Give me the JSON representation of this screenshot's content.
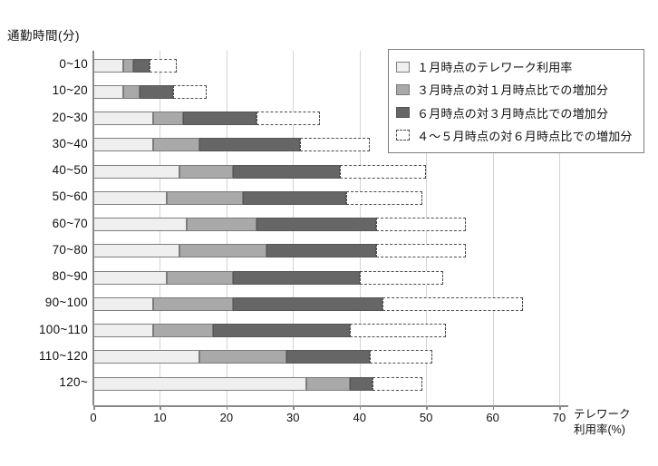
{
  "chart_data": {
    "type": "bar",
    "orientation": "horizontal-stacked",
    "title": "",
    "ylabel": "通勤時間(分)",
    "xlabel_line1": "テレワーク",
    "xlabel_line2": "利用率(%)",
    "xlim": [
      0,
      70
    ],
    "xticks": [
      0,
      10,
      20,
      30,
      40,
      50,
      60,
      70
    ],
    "grid": true,
    "legend_position": "top-right",
    "series": [
      {
        "name": "１月時点のテレワーク利用率",
        "style": "solid",
        "color": "#efefef"
      },
      {
        "name": "３月時点の対１月時点比での増加分",
        "style": "solid",
        "color": "#a9a9a9"
      },
      {
        "name": "６月時点の対３月時点比での増加分",
        "style": "solid",
        "color": "#666666"
      },
      {
        "name": "４～５月時点の対６月時点比での増加分",
        "style": "dashed",
        "color": "#ffffff"
      }
    ],
    "categories": [
      "0~10",
      "10~20",
      "20~30",
      "30~40",
      "40~50",
      "50~60",
      "60~70",
      "70~80",
      "80~90",
      "90~100",
      "100~110",
      "110~120",
      "120~"
    ],
    "cumulative_pct": [
      {
        "category": "0~10",
        "jan": 4.5,
        "mar": 6,
        "jun": 8.5,
        "apr_may": 12.5
      },
      {
        "category": "10~20",
        "jan": 4.5,
        "mar": 7,
        "jun": 12,
        "apr_may": 17
      },
      {
        "category": "20~30",
        "jan": 9,
        "mar": 13.5,
        "jun": 24.5,
        "apr_may": 34
      },
      {
        "category": "30~40",
        "jan": 9,
        "mar": 16,
        "jun": 31,
        "apr_may": 41.5
      },
      {
        "category": "40~50",
        "jan": 13,
        "mar": 21,
        "jun": 37,
        "apr_may": 50
      },
      {
        "category": "50~60",
        "jan": 11,
        "mar": 22.5,
        "jun": 38,
        "apr_may": 49.5
      },
      {
        "category": "60~70",
        "jan": 14,
        "mar": 24.5,
        "jun": 42.5,
        "apr_may": 56
      },
      {
        "category": "70~80",
        "jan": 13,
        "mar": 26,
        "jun": 42.5,
        "apr_may": 56
      },
      {
        "category": "80~90",
        "jan": 11,
        "mar": 21,
        "jun": 40,
        "apr_may": 52.5
      },
      {
        "category": "90~100",
        "jan": 9,
        "mar": 21,
        "jun": 43.5,
        "apr_may": 64.5
      },
      {
        "category": "100~110",
        "jan": 9,
        "mar": 18,
        "jun": 38.5,
        "apr_may": 53
      },
      {
        "category": "110~120",
        "jan": 16,
        "mar": 29,
        "jun": 41.5,
        "apr_may": 51
      },
      {
        "category": "120~",
        "jan": 32,
        "mar": 38.5,
        "jun": 42,
        "apr_may": 49.5
      }
    ],
    "colors": {
      "grid": "#d4d4d4",
      "axis": "#8a8a8a",
      "text": "#111111",
      "bar_light": "#efefef",
      "bar_medium": "#a9a9a9",
      "bar_dark": "#666666",
      "dashed_border": "#4c4c4c"
    }
  }
}
